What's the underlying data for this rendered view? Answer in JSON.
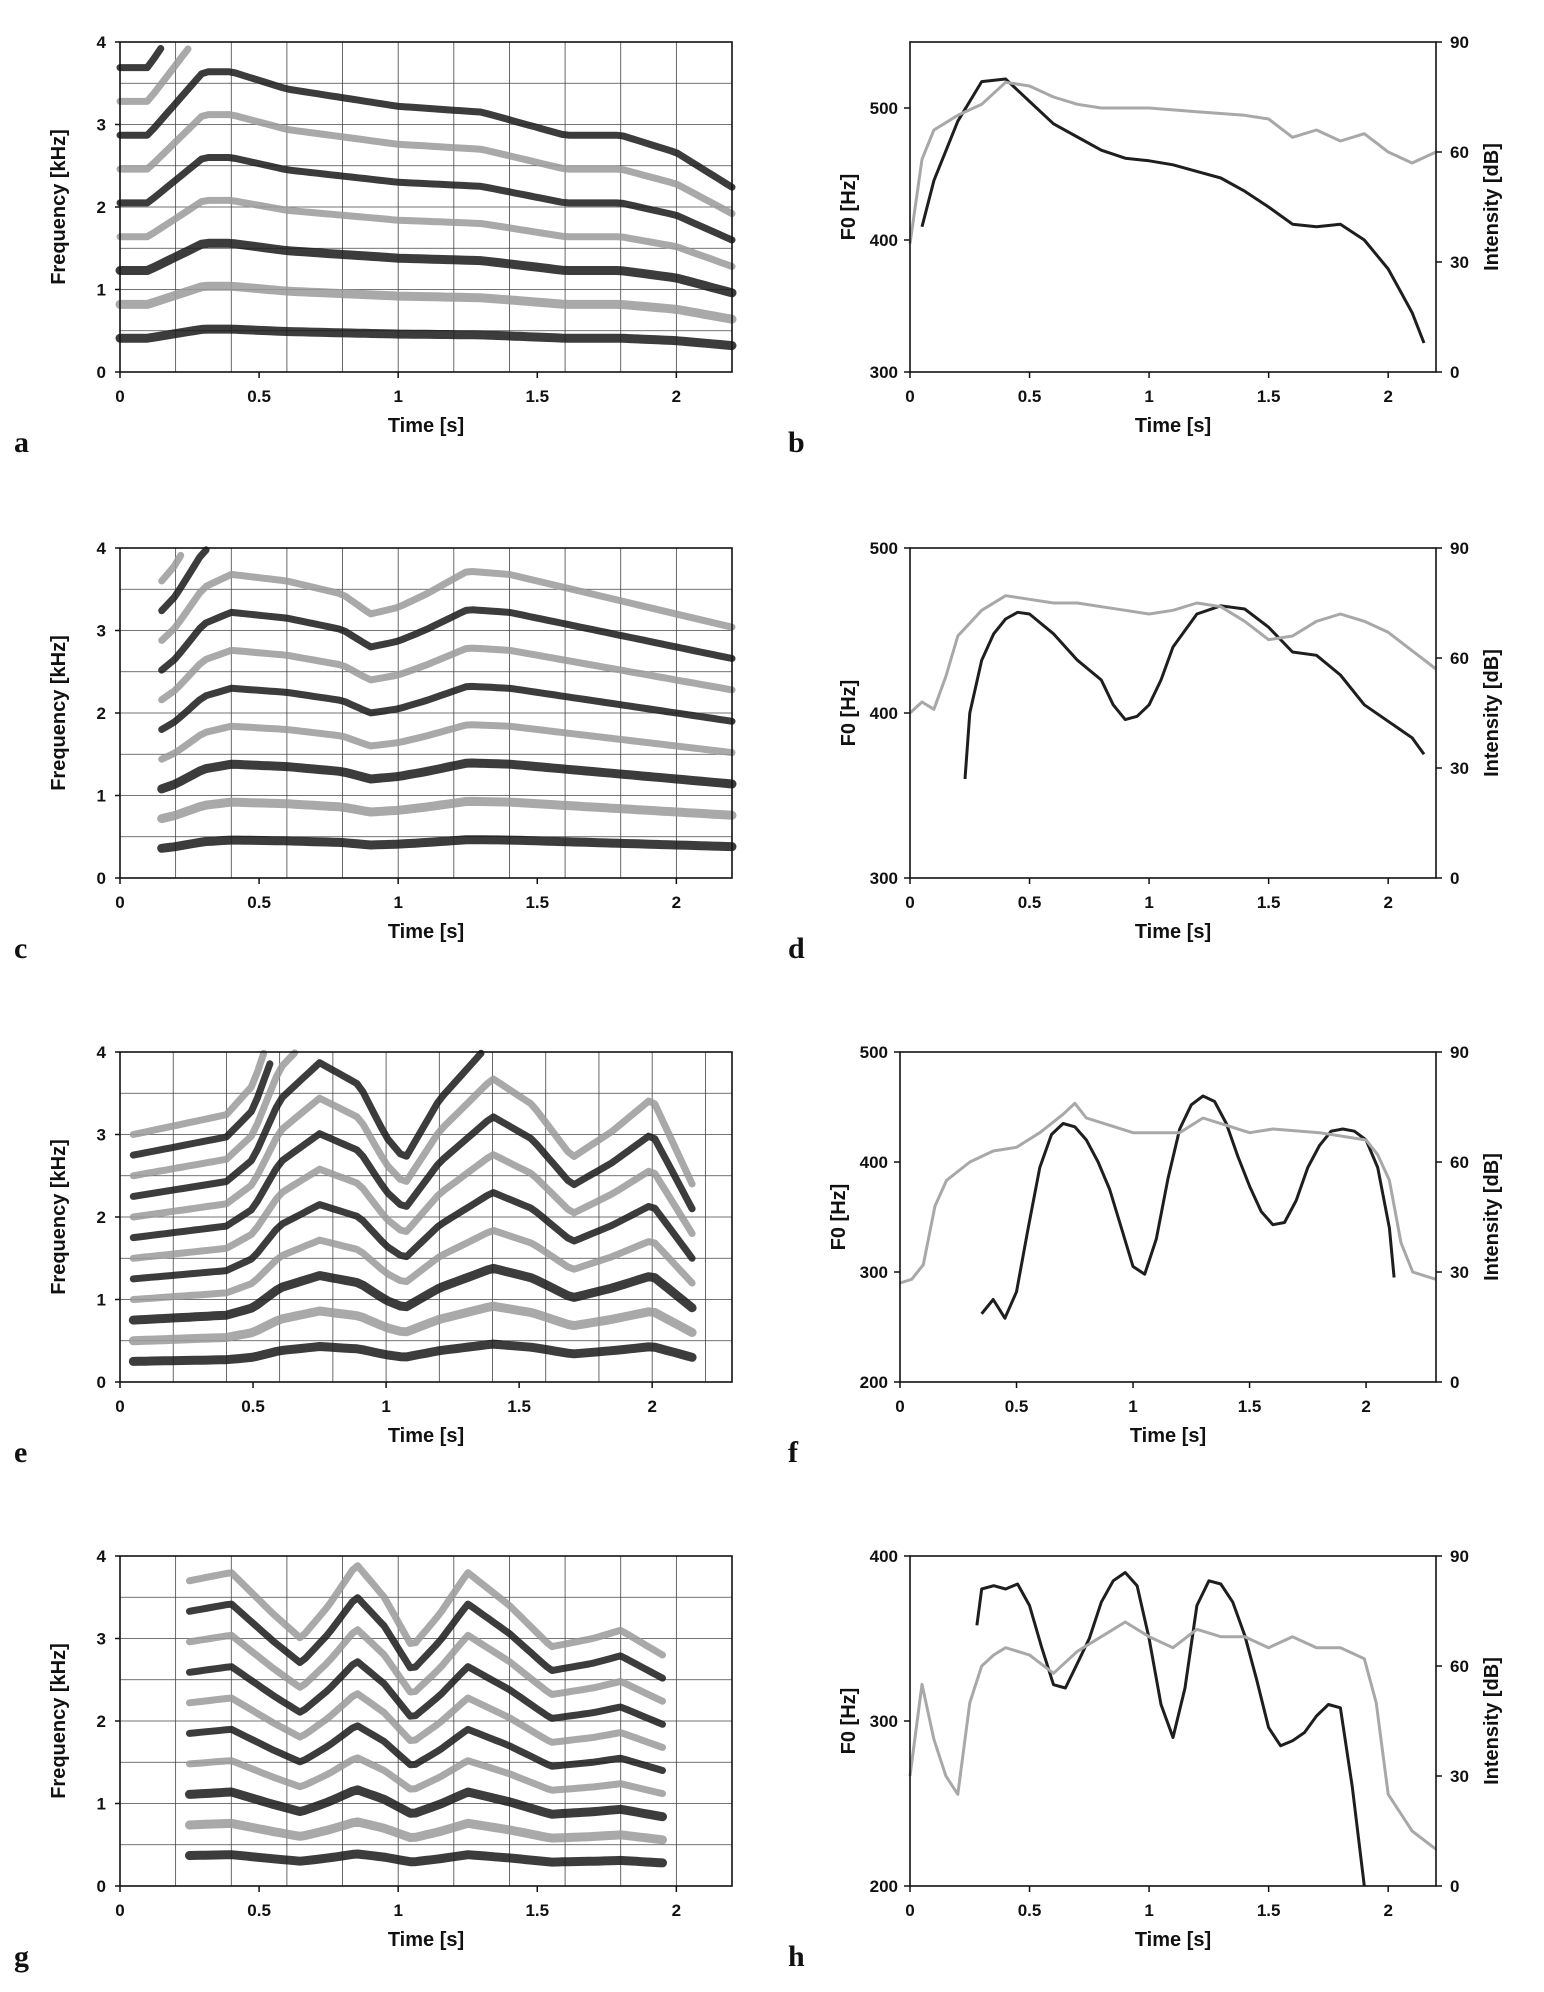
{
  "chart_data": [
    {
      "panel": "a",
      "type": "heatmap",
      "subtype": "spectrogram",
      "xlabel": "Time [s]",
      "ylabel": "Frequency [kHz]",
      "xlim": [
        0,
        2.2
      ],
      "ylim": [
        0,
        4
      ],
      "xticks": [
        "0",
        "0.5",
        "1",
        "1.5",
        "2"
      ],
      "yticks": [
        "0",
        "1",
        "2",
        "3",
        "4"
      ],
      "colors": {
        "dark": "#1a1a1a",
        "light": "#9a9a9a",
        "background": "#ffffff"
      },
      "harmonics": {
        "f0": [
          [
            0.1,
            0.41
          ],
          [
            0.3,
            0.52
          ],
          [
            0.4,
            0.52
          ],
          [
            0.6,
            0.49
          ],
          [
            1.0,
            0.46
          ],
          [
            1.3,
            0.45
          ],
          [
            1.6,
            0.41
          ],
          [
            1.8,
            0.41
          ],
          [
            2.0,
            0.38
          ],
          [
            2.2,
            0.32
          ]
        ],
        "count": 10,
        "start": 0.0,
        "end": 2.2
      }
    },
    {
      "panel": "b",
      "type": "line",
      "xlabel": "Time [s]",
      "ylabel": "F0 [Hz]",
      "y2label": "Intensity [dB]",
      "xlim": [
        0,
        2.2
      ],
      "ylim": [
        300,
        550
      ],
      "y2lim": [
        0,
        90
      ],
      "xticks": [
        "0",
        "0.5",
        "1",
        "1.5",
        "2"
      ],
      "yticks": [
        "300",
        "400",
        "500"
      ],
      "y2ticks": [
        "0",
        "30",
        "60",
        "90"
      ],
      "series": [
        {
          "color": "#1e1e1e",
          "axis": "left",
          "x": [
            0.05,
            0.1,
            0.2,
            0.3,
            0.4,
            0.5,
            0.6,
            0.7,
            0.8,
            0.9,
            1.0,
            1.1,
            1.2,
            1.3,
            1.4,
            1.5,
            1.6,
            1.7,
            1.8,
            1.9,
            2.0,
            2.1,
            2.15
          ],
          "y": [
            410,
            445,
            490,
            520,
            522,
            505,
            488,
            478,
            468,
            462,
            460,
            457,
            452,
            447,
            437,
            425,
            412,
            410,
            412,
            400,
            378,
            345,
            322
          ]
        },
        {
          "color": "#a8a8a8",
          "axis": "right",
          "x": [
            0.0,
            0.05,
            0.1,
            0.2,
            0.3,
            0.4,
            0.5,
            0.6,
            0.7,
            0.8,
            1.0,
            1.2,
            1.4,
            1.5,
            1.6,
            1.7,
            1.8,
            1.9,
            2.0,
            2.1,
            2.2
          ],
          "y": [
            35,
            58,
            66,
            70,
            73,
            79,
            78,
            75,
            73,
            72,
            72,
            71,
            70,
            69,
            64,
            66,
            63,
            65,
            60,
            57,
            60
          ]
        }
      ]
    },
    {
      "panel": "c",
      "type": "heatmap",
      "subtype": "spectrogram",
      "xlabel": "Time [s]",
      "ylabel": "Frequency [kHz]",
      "xlim": [
        0,
        2.2
      ],
      "ylim": [
        0,
        4
      ],
      "xticks": [
        "0",
        "0.5",
        "1",
        "1.5",
        "2"
      ],
      "yticks": [
        "0",
        "1",
        "2",
        "3",
        "4"
      ],
      "colors": {
        "dark": "#1a1a1a",
        "light": "#9a9a9a",
        "background": "#ffffff"
      },
      "harmonics": {
        "f0": [
          [
            0.15,
            0.36
          ],
          [
            0.2,
            0.38
          ],
          [
            0.3,
            0.44
          ],
          [
            0.4,
            0.46
          ],
          [
            0.6,
            0.45
          ],
          [
            0.8,
            0.43
          ],
          [
            0.9,
            0.4
          ],
          [
            1.0,
            0.41
          ],
          [
            1.1,
            0.43
          ],
          [
            1.25,
            0.465
          ],
          [
            1.4,
            0.46
          ],
          [
            1.6,
            0.44
          ],
          [
            1.8,
            0.42
          ],
          [
            2.0,
            0.4
          ],
          [
            2.2,
            0.38
          ]
        ],
        "count": 12,
        "start": 0.15,
        "end": 2.2
      }
    },
    {
      "panel": "d",
      "type": "line",
      "xlabel": "Time [s]",
      "ylabel": "F0 [Hz]",
      "y2label": "Intensity [dB]",
      "xlim": [
        0,
        2.2
      ],
      "ylim": [
        300,
        500
      ],
      "y2lim": [
        0,
        90
      ],
      "xticks": [
        "0",
        "0.5",
        "1",
        "1.5",
        "2"
      ],
      "yticks": [
        "300",
        "400",
        "500"
      ],
      "y2ticks": [
        "0",
        "30",
        "60",
        "90"
      ],
      "series": [
        {
          "color": "#1e1e1e",
          "axis": "left",
          "x": [
            0.23,
            0.25,
            0.3,
            0.35,
            0.4,
            0.45,
            0.5,
            0.6,
            0.7,
            0.8,
            0.85,
            0.9,
            0.95,
            1.0,
            1.05,
            1.1,
            1.2,
            1.3,
            1.4,
            1.5,
            1.6,
            1.7,
            1.8,
            1.9,
            2.0,
            2.1,
            2.15
          ],
          "y": [
            360,
            400,
            432,
            448,
            457,
            461,
            460,
            448,
            432,
            420,
            405,
            396,
            398,
            405,
            420,
            440,
            460,
            465,
            463,
            452,
            437,
            435,
            423,
            405,
            395,
            385,
            375
          ]
        },
        {
          "color": "#a8a8a8",
          "axis": "right",
          "x": [
            0.0,
            0.05,
            0.1,
            0.15,
            0.2,
            0.3,
            0.4,
            0.5,
            0.6,
            0.7,
            0.8,
            0.9,
            1.0,
            1.1,
            1.2,
            1.3,
            1.4,
            1.5,
            1.6,
            1.7,
            1.8,
            1.9,
            2.0,
            2.1,
            2.2
          ],
          "y": [
            45,
            48,
            46,
            55,
            66,
            73,
            77,
            76,
            75,
            75,
            74,
            73,
            72,
            73,
            75,
            74,
            70,
            65,
            66,
            70,
            72,
            70,
            67,
            62,
            57
          ]
        }
      ]
    },
    {
      "panel": "e",
      "type": "heatmap",
      "subtype": "spectrogram",
      "xlabel": "Time [s]",
      "ylabel": "Frequency [kHz]",
      "xlim": [
        0,
        2.3
      ],
      "ylim": [
        0,
        4
      ],
      "xticks": [
        "0",
        "0.5",
        "1",
        "1.5",
        "2"
      ],
      "yticks": [
        "0",
        "1",
        "2",
        "3",
        "4"
      ],
      "colors": {
        "dark": "#1a1a1a",
        "light": "#9a9a9a",
        "background": "#ffffff"
      },
      "harmonics": {
        "f0": [
          [
            0.05,
            0.25
          ],
          [
            0.4,
            0.27
          ],
          [
            0.5,
            0.3
          ],
          [
            0.6,
            0.38
          ],
          [
            0.75,
            0.43
          ],
          [
            0.9,
            0.4
          ],
          [
            1.0,
            0.33
          ],
          [
            1.07,
            0.3
          ],
          [
            1.2,
            0.38
          ],
          [
            1.4,
            0.46
          ],
          [
            1.55,
            0.42
          ],
          [
            1.7,
            0.34
          ],
          [
            1.85,
            0.38
          ],
          [
            2.0,
            0.43
          ],
          [
            2.15,
            0.3
          ]
        ],
        "count": 12,
        "start": 0.05,
        "end": 2.15
      }
    },
    {
      "panel": "f",
      "type": "line",
      "xlabel": "Time [s]",
      "ylabel": "F0 [Hz]",
      "y2label": "Intensity [dB]",
      "xlim": [
        0,
        2.3
      ],
      "ylim": [
        200,
        500
      ],
      "y2lim": [
        0,
        90
      ],
      "xticks": [
        "0",
        "0.5",
        "1",
        "1.5",
        "2"
      ],
      "yticks": [
        "200",
        "300",
        "400",
        "500"
      ],
      "y2ticks": [
        "0",
        "30",
        "60",
        "90"
      ],
      "series": [
        {
          "color": "#1e1e1e",
          "axis": "left",
          "x": [
            0.35,
            0.4,
            0.45,
            0.5,
            0.55,
            0.6,
            0.65,
            0.7,
            0.75,
            0.8,
            0.85,
            0.9,
            0.95,
            1.0,
            1.05,
            1.1,
            1.15,
            1.2,
            1.25,
            1.3,
            1.35,
            1.4,
            1.45,
            1.5,
            1.55,
            1.6,
            1.65,
            1.7,
            1.75,
            1.8,
            1.85,
            1.9,
            1.95,
            2.0,
            2.05,
            2.1,
            2.12
          ],
          "y": [
            262,
            275,
            258,
            282,
            340,
            395,
            425,
            435,
            432,
            420,
            400,
            375,
            340,
            305,
            298,
            330,
            385,
            430,
            452,
            460,
            455,
            435,
            405,
            378,
            355,
            343,
            345,
            365,
            395,
            415,
            428,
            430,
            428,
            420,
            395,
            340,
            295
          ]
        },
        {
          "color": "#a8a8a8",
          "axis": "right",
          "x": [
            0.0,
            0.05,
            0.1,
            0.15,
            0.2,
            0.3,
            0.4,
            0.5,
            0.6,
            0.7,
            0.75,
            0.8,
            0.9,
            1.0,
            1.2,
            1.3,
            1.4,
            1.5,
            1.6,
            1.8,
            2.0,
            2.05,
            2.1,
            2.15,
            2.2,
            2.25,
            2.3
          ],
          "y": [
            27,
            28,
            32,
            48,
            55,
            60,
            63,
            64,
            68,
            73,
            76,
            72,
            70,
            68,
            68,
            72,
            70,
            68,
            69,
            68,
            66,
            62,
            55,
            38,
            30,
            29,
            28
          ]
        }
      ]
    },
    {
      "panel": "g",
      "type": "heatmap",
      "subtype": "spectrogram",
      "xlabel": "Time [s]",
      "ylabel": "Frequency [kHz]",
      "xlim": [
        0,
        2.2
      ],
      "ylim": [
        0,
        4
      ],
      "xticks": [
        "0",
        "0.5",
        "1",
        "1.5",
        "2"
      ],
      "yticks": [
        "0",
        "1",
        "2",
        "3",
        "4"
      ],
      "colors": {
        "dark": "#1a1a1a",
        "light": "#9a9a9a",
        "background": "#ffffff"
      },
      "harmonics": {
        "f0": [
          [
            0.25,
            0.37
          ],
          [
            0.4,
            0.38
          ],
          [
            0.55,
            0.33
          ],
          [
            0.65,
            0.3
          ],
          [
            0.75,
            0.34
          ],
          [
            0.85,
            0.39
          ],
          [
            0.95,
            0.35
          ],
          [
            1.05,
            0.29
          ],
          [
            1.15,
            0.33
          ],
          [
            1.25,
            0.38
          ],
          [
            1.4,
            0.34
          ],
          [
            1.55,
            0.29
          ],
          [
            1.7,
            0.3
          ],
          [
            1.8,
            0.31
          ],
          [
            1.95,
            0.28
          ]
        ],
        "count": 13,
        "start": 0.25,
        "end": 1.95
      }
    },
    {
      "panel": "h",
      "type": "line",
      "xlabel": "Time [s]",
      "ylabel": "F0 [Hz]",
      "y2label": "Intensity [dB]",
      "xlim": [
        0,
        2.2
      ],
      "ylim": [
        200,
        400
      ],
      "y2lim": [
        0,
        90
      ],
      "xticks": [
        "0",
        "0.5",
        "1",
        "1.5",
        "2"
      ],
      "yticks": [
        "200",
        "300",
        "400"
      ],
      "y2ticks": [
        "0",
        "30",
        "60",
        "90"
      ],
      "series": [
        {
          "color": "#1e1e1e",
          "axis": "left",
          "x": [
            0.28,
            0.3,
            0.35,
            0.4,
            0.45,
            0.5,
            0.55,
            0.6,
            0.65,
            0.7,
            0.75,
            0.8,
            0.85,
            0.9,
            0.95,
            1.0,
            1.05,
            1.1,
            1.15,
            1.2,
            1.25,
            1.3,
            1.35,
            1.4,
            1.45,
            1.5,
            1.55,
            1.6,
            1.65,
            1.7,
            1.75,
            1.8,
            1.85,
            1.9
          ],
          "y": [
            358,
            380,
            382,
            380,
            383,
            370,
            345,
            322,
            320,
            335,
            350,
            372,
            385,
            390,
            382,
            350,
            310,
            290,
            320,
            370,
            385,
            383,
            372,
            352,
            325,
            296,
            285,
            288,
            293,
            303,
            310,
            308,
            260,
            200
          ]
        },
        {
          "color": "#a8a8a8",
          "axis": "right",
          "x": [
            0.0,
            0.05,
            0.1,
            0.15,
            0.2,
            0.25,
            0.3,
            0.35,
            0.4,
            0.5,
            0.6,
            0.7,
            0.8,
            0.9,
            1.0,
            1.1,
            1.2,
            1.3,
            1.4,
            1.5,
            1.6,
            1.7,
            1.8,
            1.9,
            1.95,
            2.0,
            2.1,
            2.2
          ],
          "y": [
            30,
            55,
            40,
            30,
            25,
            50,
            60,
            63,
            65,
            63,
            58,
            64,
            68,
            72,
            68,
            65,
            70,
            68,
            68,
            65,
            68,
            65,
            65,
            62,
            50,
            25,
            15,
            10
          ]
        }
      ]
    }
  ]
}
